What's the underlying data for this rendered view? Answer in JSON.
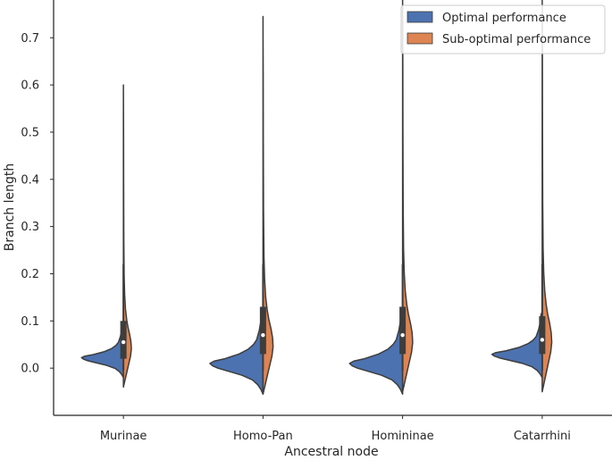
{
  "chart_data": {
    "type": "violin",
    "subtype": "split",
    "title": "",
    "xlabel": "Ancestral node",
    "ylabel": "Branch length",
    "ylim": [
      -0.1,
      0.78
    ],
    "yticks": [
      "0.0",
      "0.1",
      "0.2",
      "0.3",
      "0.4",
      "0.5",
      "0.6",
      "0.7"
    ],
    "yticks_values": [
      0.0,
      0.1,
      0.2,
      0.3,
      0.4,
      0.5,
      0.6,
      0.7
    ],
    "categories": [
      "Murinae",
      "Homo-Pan",
      "Homininae",
      "Catarrhini"
    ],
    "legend": {
      "position": "top-right",
      "entries": [
        {
          "name": "Optimal performance",
          "color": "#4c72b0"
        },
        {
          "name": "Sub-optimal performance",
          "color": "#dd8452"
        }
      ]
    },
    "series": [
      {
        "name": "Optimal performance",
        "color": "#4c72b0",
        "stats": [
          {
            "category": "Murinae",
            "min": -0.02,
            "max": 0.1,
            "median": 0.05,
            "q1": 0.02,
            "q3": 0.1
          },
          {
            "category": "Homo-Pan",
            "min": -0.055,
            "max": 0.13,
            "median": 0.065,
            "q1": 0.03,
            "q3": 0.12
          },
          {
            "category": "Homininae",
            "min": -0.055,
            "max": 0.13,
            "median": 0.065,
            "q1": 0.03,
            "q3": 0.12
          },
          {
            "category": "Catarrhini",
            "min": -0.02,
            "max": 0.12,
            "median": 0.06,
            "q1": 0.03,
            "q3": 0.11
          }
        ]
      },
      {
        "name": "Sub-optimal performance",
        "color": "#dd8452",
        "stats": [
          {
            "category": "Murinae",
            "min": -0.04,
            "max": 0.6,
            "median": 0.055,
            "q1": 0.02,
            "q3": 0.1
          },
          {
            "category": "Homo-Pan",
            "min": -0.055,
            "max": 0.745,
            "median": 0.07,
            "q1": 0.03,
            "q3": 0.13
          },
          {
            "category": "Homininae",
            "min": -0.05,
            "max": 0.78,
            "median": 0.07,
            "q1": 0.03,
            "q3": 0.13
          },
          {
            "category": "Catarrhini",
            "min": -0.05,
            "max": 0.78,
            "median": 0.06,
            "q1": 0.03,
            "q3": 0.11
          }
        ]
      }
    ]
  }
}
